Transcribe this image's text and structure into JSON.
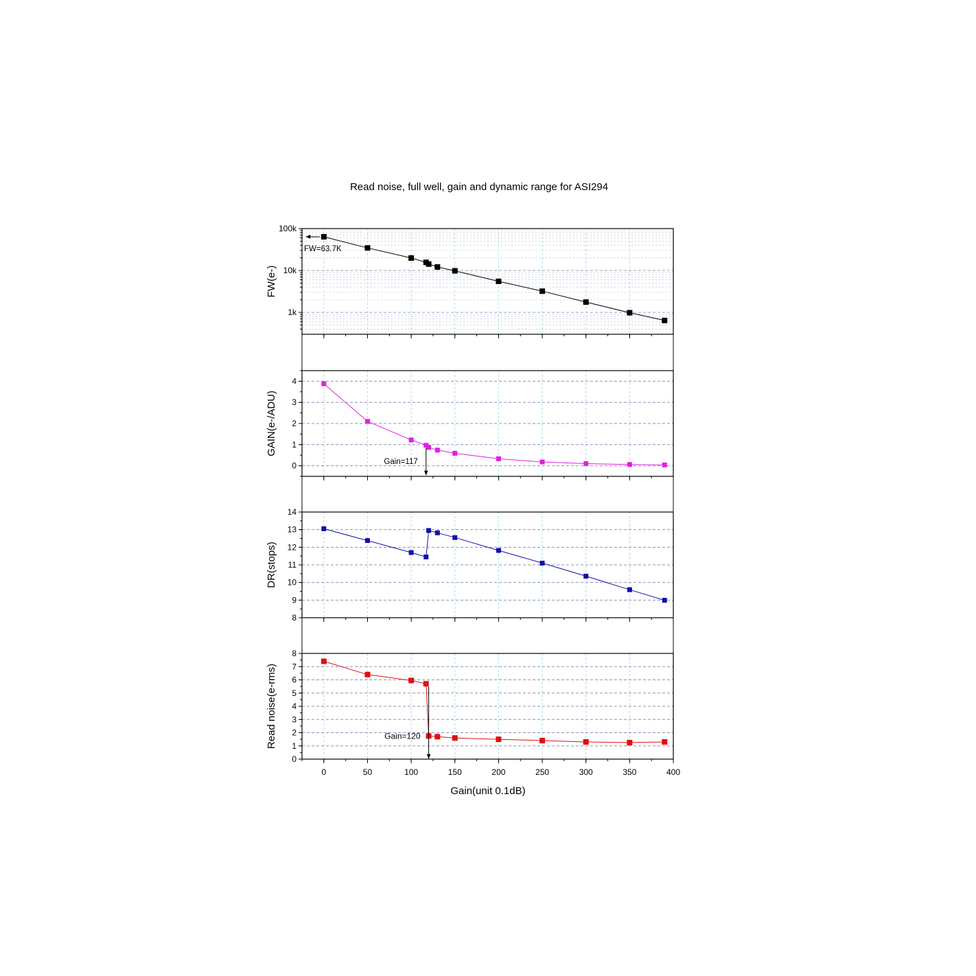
{
  "chart_data": {
    "title": "Read noise, full well, gain and dynamic range for ASI294",
    "xlabel": "Gain(unit 0.1dB)",
    "xlim": [
      -25,
      400
    ],
    "xticks": [
      0,
      50,
      100,
      150,
      200,
      250,
      300,
      350,
      400
    ],
    "xtick_labels": [
      "0",
      "50",
      "100",
      "150",
      "200",
      "250",
      "300",
      "350",
      "400"
    ],
    "panels": [
      {
        "id": "fw",
        "type": "scatter-line",
        "ylabel": "FW(e-)",
        "yscale": "log",
        "ylim": [
          300,
          100000
        ],
        "yticks": [
          1000,
          10000,
          100000
        ],
        "ytick_labels": [
          "1k",
          "10k",
          "100k"
        ],
        "grid": true,
        "color": "#000000",
        "x": [
          0,
          50,
          100,
          117,
          120,
          130,
          150,
          200,
          250,
          300,
          350,
          390
        ],
        "y": [
          63700,
          34500,
          19800,
          15600,
          14200,
          12100,
          9800,
          5500,
          3200,
          1760,
          980,
          640
        ],
        "annotation": "FW=63.7K"
      },
      {
        "id": "gain",
        "type": "scatter-line",
        "ylabel": "GAIN(e-/ADU)",
        "yscale": "linear",
        "ylim": [
          -0.5,
          4.5
        ],
        "yticks": [
          0,
          1,
          2,
          3,
          4
        ],
        "ytick_labels": [
          "0",
          "1",
          "2",
          "3",
          "4"
        ],
        "grid": true,
        "color": "#dd22dd",
        "x": [
          0,
          50,
          100,
          117,
          120,
          130,
          150,
          200,
          250,
          300,
          350,
          390
        ],
        "y": [
          3.88,
          2.1,
          1.22,
          0.97,
          0.87,
          0.74,
          0.59,
          0.33,
          0.18,
          0.1,
          0.06,
          0.04
        ],
        "annotation": "Gain=117"
      },
      {
        "id": "dr",
        "type": "scatter-line",
        "ylabel": "DR(stops)",
        "yscale": "linear",
        "ylim": [
          8,
          14
        ],
        "yticks": [
          8,
          9,
          10,
          11,
          12,
          13,
          14
        ],
        "ytick_labels": [
          "8",
          "9",
          "10",
          "11",
          "12",
          "13",
          "14"
        ],
        "grid": true,
        "color": "#1010aa",
        "x": [
          0,
          50,
          100,
          117,
          120,
          130,
          150,
          200,
          250,
          300,
          350,
          390
        ],
        "y": [
          13.05,
          12.38,
          11.7,
          11.45,
          12.95,
          12.82,
          12.55,
          11.82,
          11.1,
          10.36,
          9.59,
          8.99
        ]
      },
      {
        "id": "rn",
        "type": "scatter-line",
        "ylabel": "Read noise(e-rms)",
        "yscale": "linear",
        "ylim": [
          0,
          8
        ],
        "yticks": [
          0,
          1,
          2,
          3,
          4,
          5,
          6,
          7,
          8
        ],
        "ytick_labels": [
          "0",
          "1",
          "2",
          "3",
          "4",
          "5",
          "6",
          "7",
          "8"
        ],
        "grid": true,
        "color": "#dd1111",
        "x": [
          0,
          50,
          100,
          117,
          120,
          130,
          150,
          200,
          250,
          300,
          350,
          390
        ],
        "y": [
          7.4,
          6.4,
          5.95,
          5.7,
          1.75,
          1.7,
          1.6,
          1.5,
          1.4,
          1.3,
          1.25,
          1.3
        ],
        "annotation": "Gain=120"
      }
    ]
  }
}
